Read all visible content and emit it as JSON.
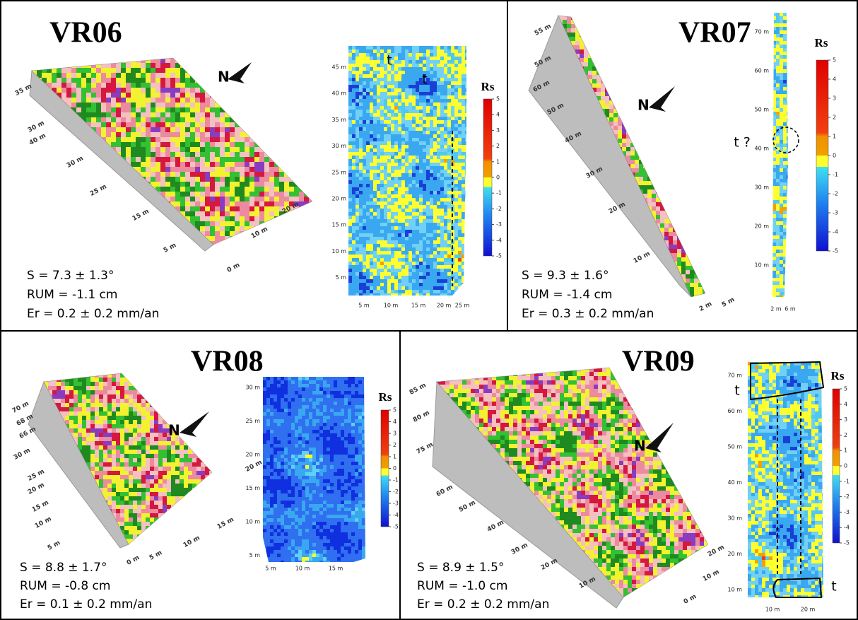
{
  "panels": [
    {
      "title": "VR06",
      "stats": [
        "S = 7.3 ± 1.3°",
        "RUM = -1.1 cm",
        "Er = 0.2 ± 0.2 mm/an"
      ],
      "north": "N",
      "surface_labels": [
        "35 m",
        "30 m",
        "40 m",
        "30 m",
        "25 m",
        "15 m",
        "5 m",
        "0 m",
        "10 m",
        "20 m"
      ],
      "map_y_ticks": [
        "45 m",
        "40 m",
        "35 m",
        "30 m",
        "25 m",
        "20 m",
        "15 m",
        "10 m",
        "5 m"
      ],
      "map_x_ticks": [
        "5 m",
        "10 m",
        "15 m",
        "20 m",
        "25 m"
      ],
      "annotations": [
        "t",
        "t"
      ],
      "colorbar": {
        "label": "Rs",
        "ticks": [
          5,
          4,
          3,
          2,
          1,
          0,
          -1,
          -2,
          -3,
          -4,
          -5
        ]
      }
    },
    {
      "title": "VR07",
      "stats": [
        "S = 9.3 ± 1.6°",
        "RUM = -1.4 cm",
        "Er = 0.3 ± 0.2 mm/an"
      ],
      "north": "N",
      "surface_labels": [
        "55 m",
        "50 m",
        "60 m",
        "50 m",
        "40 m",
        "30 m",
        "20 m",
        "10 m",
        "2 m",
        "5 m"
      ],
      "map_y_ticks": [
        "70 m",
        "60 m",
        "50 m",
        "40 m",
        "30 m",
        "20 m",
        "10 m"
      ],
      "map_x_ticks": [
        "2 m",
        "6 m"
      ],
      "annotations": [
        "t ?"
      ],
      "colorbar": {
        "label": "Rs",
        "ticks": [
          5,
          4,
          3,
          2,
          1,
          0,
          -1,
          -2,
          -3,
          -4,
          -5
        ]
      }
    },
    {
      "title": "VR08",
      "stats": [
        "S = 8.8 ± 1.7°",
        "RUM = -0.8 cm",
        "Er = 0.1 ± 0.2 mm/an"
      ],
      "north": "N",
      "surface_labels": [
        "70 m",
        "68 m",
        "66 m",
        "30 m",
        "25 m",
        "20 m",
        "15 m",
        "10 m",
        "5 m",
        "0 m",
        "5 m",
        "10 m",
        "15 m",
        "20 m"
      ],
      "map_y_ticks": [
        "30 m",
        "25 m",
        "20 m",
        "15 m",
        "10 m",
        "5 m"
      ],
      "map_x_ticks": [
        "5 m",
        "10 m",
        "15 m"
      ],
      "annotations": [],
      "colorbar": {
        "label": "Rs",
        "ticks": [
          5,
          4,
          3,
          2,
          1,
          0,
          -1,
          -2,
          -3,
          -4,
          -5
        ]
      }
    },
    {
      "title": "VR09",
      "stats": [
        "S = 8.9 ± 1.5°",
        "RUM = -1.0 cm",
        "Er = 0.2 ± 0.2 mm/an"
      ],
      "north": "N",
      "surface_labels": [
        "85 m",
        "80 m",
        "75 m",
        "60 m",
        "50 m",
        "40 m",
        "30 m",
        "20 m",
        "10 m",
        "0 m",
        "10 m",
        "20 m"
      ],
      "map_y_ticks": [
        "70 m",
        "60 m",
        "50 m",
        "40 m",
        "30 m",
        "20 m",
        "10 m"
      ],
      "map_x_ticks": [
        "10 m",
        "20 m"
      ],
      "annotations": [
        "t",
        "t"
      ],
      "colorbar": {
        "label": "Rs",
        "ticks": [
          5,
          4,
          3,
          2,
          1,
          0,
          -1,
          -2,
          -3,
          -4,
          -5
        ]
      }
    }
  ]
}
